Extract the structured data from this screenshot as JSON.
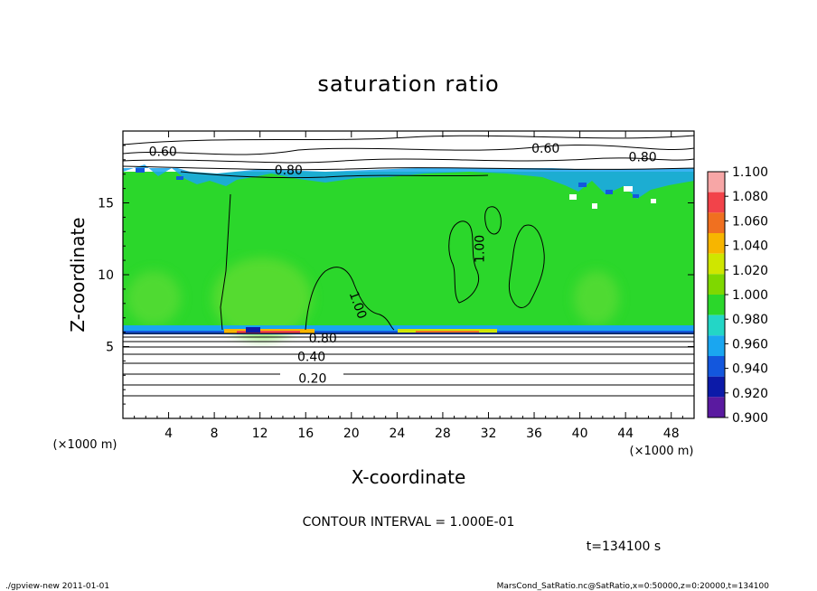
{
  "chart_data": {
    "type": "heatmap",
    "title": "saturation ratio",
    "xlabel": "X-coordinate",
    "ylabel": "Z-coordinate",
    "x_unit": "(×1000 m)",
    "y_unit": "(×1000 m)",
    "xlim": [
      0,
      50
    ],
    "ylim": [
      0,
      20
    ],
    "x_ticks": [
      4,
      8,
      12,
      16,
      20,
      24,
      28,
      32,
      36,
      40,
      44,
      48
    ],
    "y_ticks": [
      5,
      10,
      15
    ],
    "colorbar": {
      "levels": [
        "1.100",
        "1.080",
        "1.060",
        "1.040",
        "1.020",
        "1.000",
        "0.980",
        "0.960",
        "0.940",
        "0.920",
        "0.900"
      ],
      "colors": [
        "#f7a6a6",
        "#f2434a",
        "#f07020",
        "#f7b500",
        "#cfe600",
        "#7fd800",
        "#2bd72b",
        "#23d6c6",
        "#1aa6f0",
        "#1357dd",
        "#0c1aa8",
        "#5a1aa0"
      ]
    },
    "contour_labels": [
      {
        "text": "0.60",
        "x": 3.5,
        "z": 18.6
      },
      {
        "text": "0.80",
        "x": 14.5,
        "z": 17.3
      },
      {
        "text": "0.60",
        "x": 37.0,
        "z": 18.8
      },
      {
        "text": "0.80",
        "x": 45.5,
        "z": 18.2
      },
      {
        "text": "1.00",
        "x": 31.2,
        "z": 11.8
      },
      {
        "text": "1.00",
        "x": 20.6,
        "z": 7.9
      },
      {
        "text": "0.80",
        "x": 17.5,
        "z": 5.6
      },
      {
        "text": "0.40",
        "x": 16.5,
        "z": 4.3
      },
      {
        "text": "0.20",
        "x": 16.6,
        "z": 2.8
      }
    ],
    "contour_interval_text": "CONTOUR INTERVAL = 1.000E-01",
    "time_text": "t=134100 s"
  },
  "footer": {
    "left": "./gpview-new  2011-01-01",
    "right": "MarsCond_SatRatio.nc@SatRatio,x=0:50000,z=0:20000,t=134100"
  }
}
